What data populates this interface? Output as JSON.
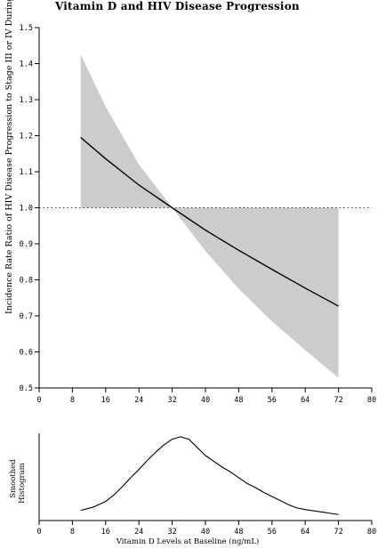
{
  "title": "Vitamin D and HIV Disease Progression",
  "chart_data": [
    {
      "type": "line",
      "name": "incidence-rate-ratio-curve",
      "ylabel": "Incidence Rate Ratio of HIV Disease Progression to Stage III or IV During Follow-up",
      "xlabel": "",
      "xlim": [
        0,
        80
      ],
      "ylim": [
        0.5,
        1.5
      ],
      "xticks": [
        "0",
        "8",
        "16",
        "24",
        "32",
        "40",
        "48",
        "56",
        "64",
        "72",
        "80"
      ],
      "yticks": [
        "0.5",
        "0.6",
        "0.7",
        "0.8",
        "0.9",
        "1.0",
        "1.1",
        "1.2",
        "1.3",
        "1.4",
        "1.5"
      ],
      "reference_line": 1.0,
      "colors": {
        "band": "#cccccc",
        "line": "#000000"
      },
      "series": [
        {
          "type": "line",
          "x": [
            10,
            16,
            24,
            32,
            40,
            48,
            56,
            64,
            72
          ],
          "values": [
            1.195,
            1.136,
            1.063,
            1.0,
            0.938,
            0.882,
            0.829,
            0.777,
            0.727
          ]
        },
        {
          "type": "area-band",
          "x": [
            10,
            16,
            24,
            32,
            40,
            48,
            56,
            64,
            72
          ],
          "upper": [
            1.425,
            1.28,
            1.12,
            1.0,
            1.0,
            1.0,
            1.0,
            1.0,
            1.0
          ],
          "lower": [
            1.0,
            1.0,
            1.0,
            1.0,
            0.88,
            0.775,
            0.685,
            0.605,
            0.528
          ]
        }
      ]
    },
    {
      "type": "line",
      "name": "smoothed-histogram",
      "ylabel": "Smoothed Histogram",
      "xlabel": "Vitamin D Levels at Baseline (ng/mL)",
      "xlim": [
        0,
        80
      ],
      "ylim": [
        0,
        1
      ],
      "xticks": [
        "0",
        "8",
        "16",
        "24",
        "32",
        "40",
        "48",
        "56",
        "64",
        "72",
        "80"
      ],
      "series": [
        {
          "x": [
            10,
            13,
            16,
            18,
            20,
            22,
            24,
            26,
            28,
            30,
            32,
            34,
            36,
            38,
            40,
            42,
            44,
            46,
            48,
            50,
            52,
            54,
            56,
            58,
            60,
            62,
            64,
            66,
            68,
            70,
            72
          ],
          "values": [
            0.08,
            0.12,
            0.19,
            0.27,
            0.37,
            0.48,
            0.58,
            0.69,
            0.79,
            0.88,
            0.95,
            0.98,
            0.95,
            0.85,
            0.75,
            0.68,
            0.61,
            0.55,
            0.48,
            0.41,
            0.36,
            0.3,
            0.25,
            0.2,
            0.15,
            0.11,
            0.09,
            0.075,
            0.06,
            0.045,
            0.03
          ]
        }
      ]
    }
  ]
}
